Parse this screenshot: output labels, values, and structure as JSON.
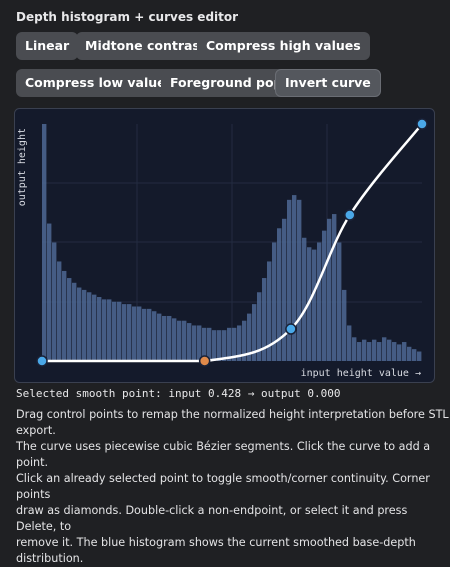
{
  "header": {
    "title": "Depth histogram + curves editor"
  },
  "buttons": [
    [
      "Linear",
      "Midtone contrast",
      "Compress high values"
    ],
    [
      "Compress low values",
      "Foreground pop",
      "Invert curve"
    ]
  ],
  "editor": {
    "y_label": "output height",
    "x_label": "input height value →",
    "histogram": {
      "color": "#4d6894",
      "values": [
        1.0,
        0.58,
        0.5,
        0.42,
        0.38,
        0.35,
        0.33,
        0.31,
        0.3,
        0.29,
        0.28,
        0.27,
        0.26,
        0.26,
        0.25,
        0.25,
        0.24,
        0.24,
        0.23,
        0.23,
        0.22,
        0.22,
        0.21,
        0.2,
        0.19,
        0.19,
        0.18,
        0.17,
        0.17,
        0.16,
        0.15,
        0.15,
        0.14,
        0.14,
        0.13,
        0.13,
        0.13,
        0.14,
        0.14,
        0.15,
        0.17,
        0.2,
        0.24,
        0.29,
        0.35,
        0.42,
        0.5,
        0.56,
        0.6,
        0.68,
        0.7,
        0.68,
        0.52,
        0.48,
        0.47,
        0.5,
        0.55,
        0.6,
        0.62,
        0.5,
        0.3,
        0.15,
        0.1,
        0.08,
        0.09,
        0.08,
        0.09,
        0.08,
        0.1,
        0.09,
        0.08,
        0.07,
        0.08,
        0.06,
        0.05,
        0.04
      ]
    },
    "curve": {
      "color": "#ffffff",
      "x": [
        0,
        0.428,
        0.655,
        0.81,
        1
      ],
      "y": [
        0,
        0,
        0.135,
        0.616,
        1
      ],
      "point_colors": [
        "#4aa8e8",
        "#e08a4a",
        "#4aa8e8",
        "#4aa8e8",
        "#4aa8e8"
      ]
    }
  },
  "status": "Selected smooth point: input 0.428 → output 0.000",
  "help": [
    "Drag control points to remap the normalized height interpretation before STL export.",
    "The curve uses piecewise cubic Bézier segments. Click the curve to add a point.",
    "Click an already selected point to toggle smooth/corner continuity. Corner points",
    "draw as diamonds. Double-click a non-endpoint, or select it and press Delete, to",
    "remove it. The blue histogram shows the current smoothed base-depth distribution."
  ]
}
